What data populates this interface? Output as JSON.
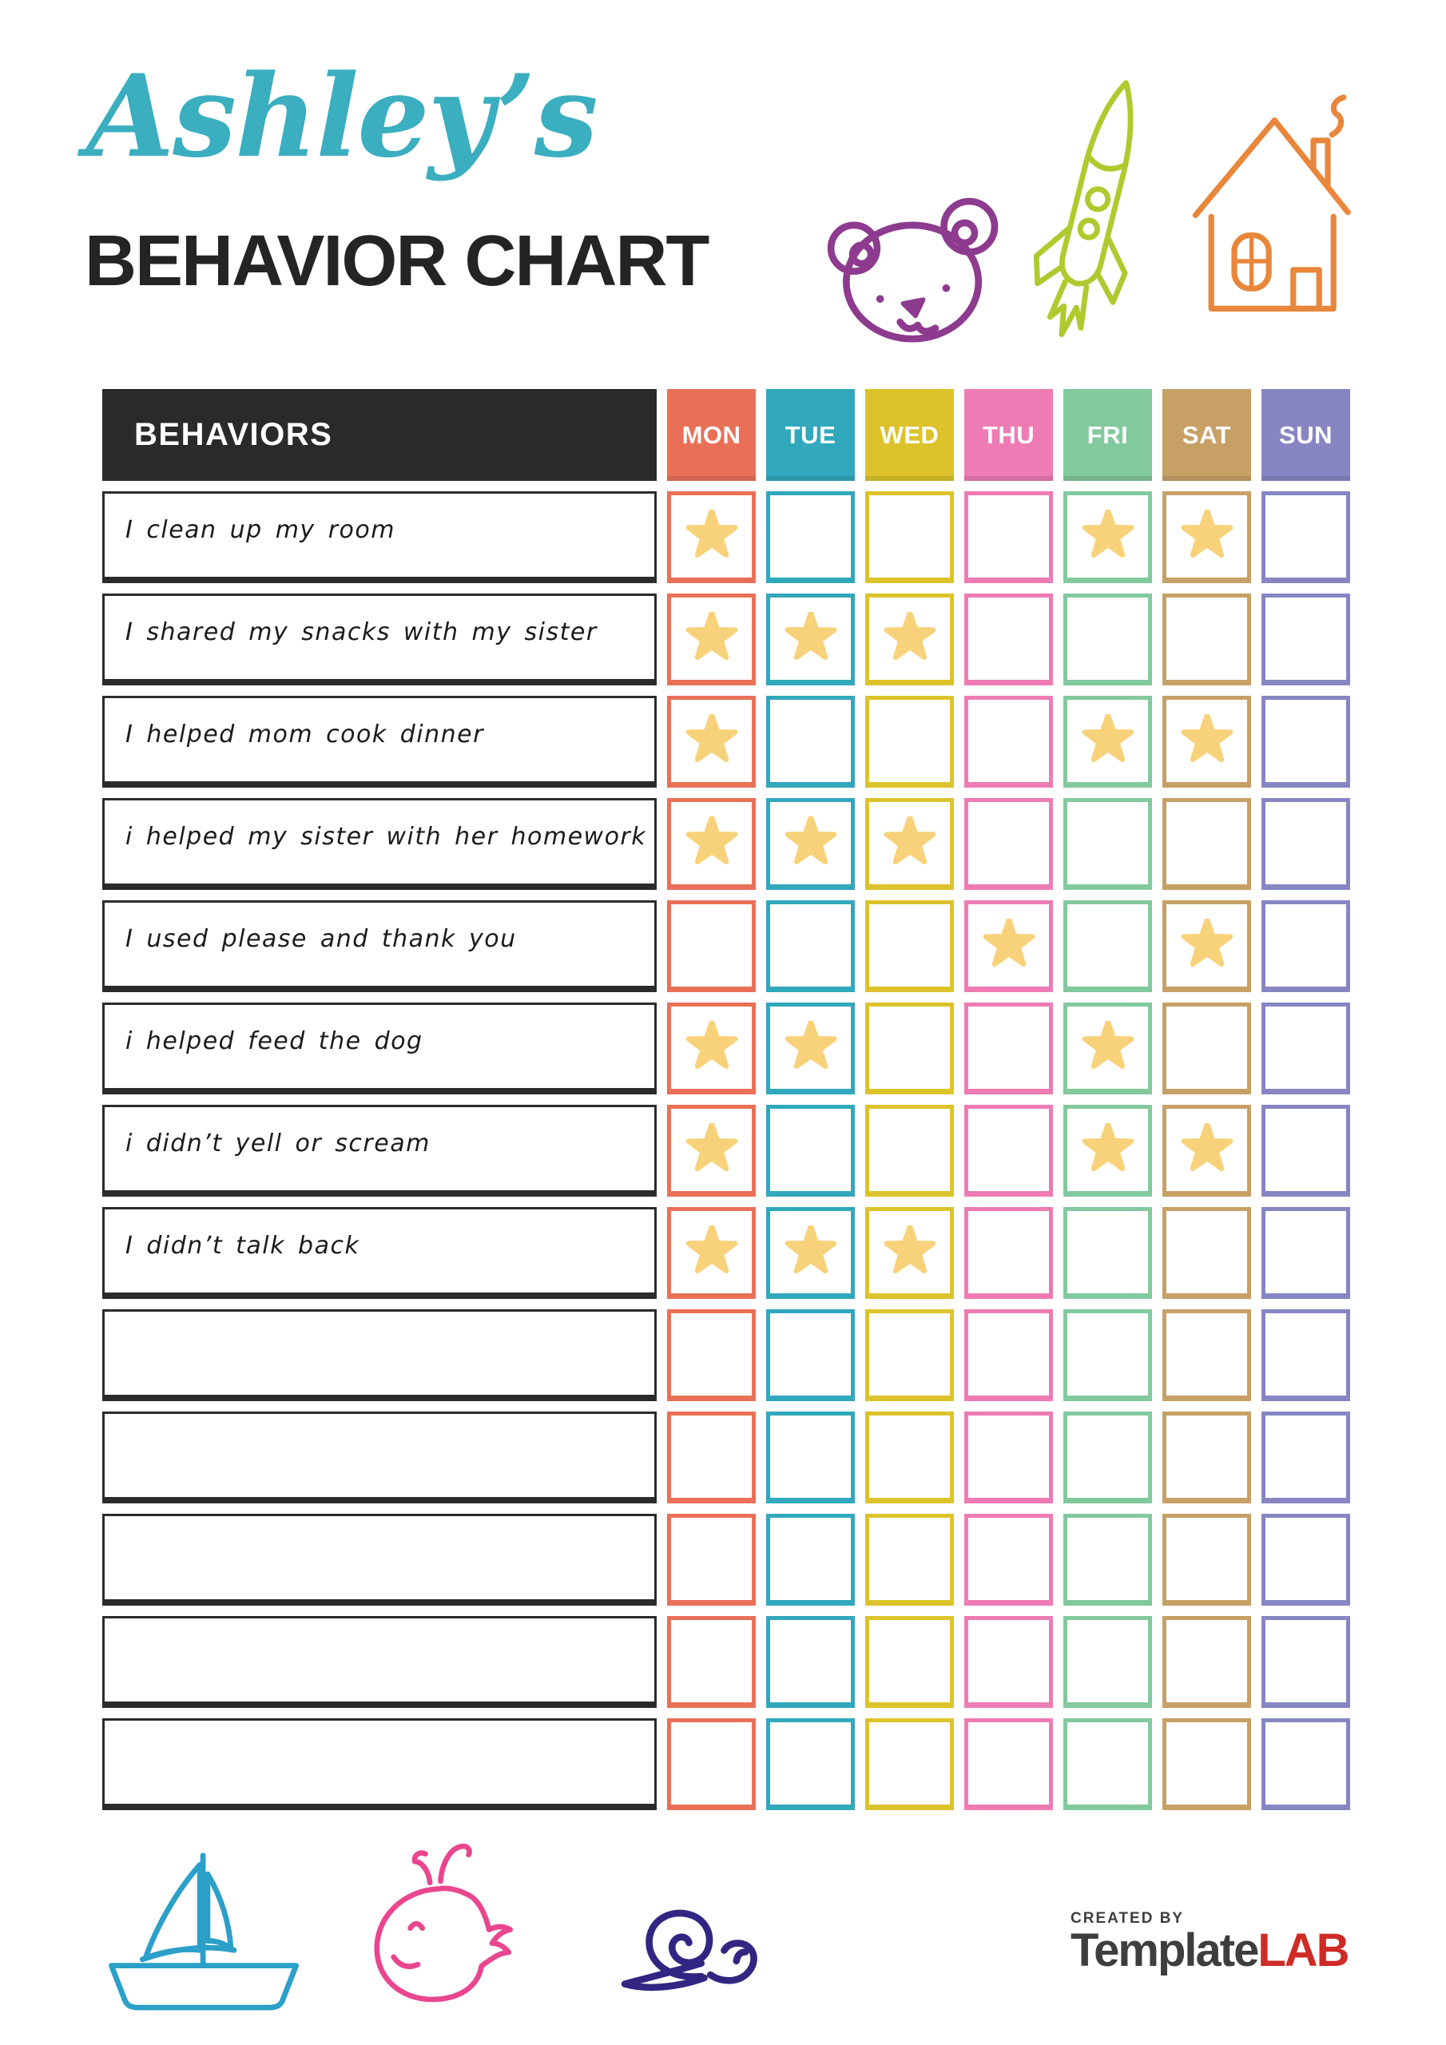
{
  "colors": {
    "title_teal": "#3BAEC0",
    "ink_black": "#242424",
    "header_bg": "#2A2A2A",
    "label_border": "#2B2B2B",
    "star_gold": "#F8D27A",
    "bear_purple": "#8D3B8E",
    "rocket_green": "#AFCA2E",
    "house_orange": "#E8873B",
    "boat_blue": "#2BA0C9",
    "whale_pink": "#E9468F",
    "snail_indigo": "#312782",
    "brand_gray": "#3E3E3E",
    "brand_red": "#CE2B26"
  },
  "header": {
    "script_title": "Ashley’s",
    "main_title": "BEHAVIOR CHART"
  },
  "table": {
    "header_label": "BEHAVIORS",
    "star_color": "#F8D27A",
    "days": [
      {
        "label": "MON",
        "color": "#E97057"
      },
      {
        "label": "TUE",
        "color": "#31A8BB"
      },
      {
        "label": "WED",
        "color": "#DCC32B"
      },
      {
        "label": "THU",
        "color": "#EE7BB4"
      },
      {
        "label": "FRI",
        "color": "#82C99E"
      },
      {
        "label": "SAT",
        "color": "#C7A066"
      },
      {
        "label": "SUN",
        "color": "#8786C3"
      }
    ],
    "rows": [
      {
        "label": "I clean up my room",
        "stars": [
          1,
          0,
          0,
          0,
          1,
          1,
          0
        ]
      },
      {
        "label": "I shared my snacks with my sister",
        "stars": [
          1,
          1,
          1,
          0,
          0,
          0,
          0
        ]
      },
      {
        "label": "I helped mom cook dinner",
        "stars": [
          1,
          0,
          0,
          0,
          1,
          1,
          0
        ]
      },
      {
        "label": "i helped my sister with her homework",
        "stars": [
          1,
          1,
          1,
          0,
          0,
          0,
          0
        ]
      },
      {
        "label": "I used please and thank you",
        "stars": [
          0,
          0,
          0,
          1,
          0,
          1,
          0
        ]
      },
      {
        "label": "i helped feed the dog",
        "stars": [
          1,
          1,
          0,
          0,
          1,
          0,
          0
        ]
      },
      {
        "label": "i didn’t yell or scream",
        "stars": [
          1,
          0,
          0,
          0,
          1,
          1,
          0
        ]
      },
      {
        "label": "I didn’t talk back",
        "stars": [
          1,
          1,
          1,
          0,
          0,
          0,
          0
        ]
      },
      {
        "label": "",
        "stars": [
          0,
          0,
          0,
          0,
          0,
          0,
          0
        ]
      },
      {
        "label": "",
        "stars": [
          0,
          0,
          0,
          0,
          0,
          0,
          0
        ]
      },
      {
        "label": "",
        "stars": [
          0,
          0,
          0,
          0,
          0,
          0,
          0
        ]
      },
      {
        "label": "",
        "stars": [
          0,
          0,
          0,
          0,
          0,
          0,
          0
        ]
      },
      {
        "label": "",
        "stars": [
          0,
          0,
          0,
          0,
          0,
          0,
          0
        ]
      }
    ]
  },
  "footer": {
    "created_by": "CREATED BY",
    "brand_template": "Template",
    "brand_lab": "LAB"
  },
  "icons": {
    "top_decorations": [
      "bear-doodle",
      "rocket-doodle",
      "house-doodle"
    ],
    "bottom_decorations": [
      "sailboat-doodle",
      "whale-doodle",
      "snail-doodle"
    ],
    "cell_marker": "star-icon"
  }
}
